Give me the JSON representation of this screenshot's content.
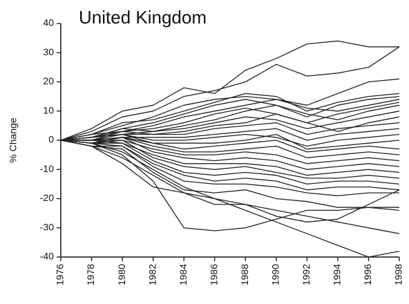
{
  "chart_data": {
    "type": "line",
    "title": "United Kingdom",
    "y_label": "% Change",
    "color": "#222222",
    "x": [
      1976,
      1978,
      1980,
      1982,
      1984,
      1986,
      1988,
      1990,
      1992,
      1994,
      1996,
      1998
    ],
    "xlim": [
      1976,
      1998
    ],
    "xticks": [
      1976,
      1978,
      1980,
      1982,
      1984,
      1986,
      1988,
      1990,
      1992,
      1994,
      1996,
      1998
    ],
    "ylim": [
      -40,
      40
    ],
    "yticks": [
      -40,
      -30,
      -20,
      -10,
      0,
      10,
      20,
      30,
      40
    ],
    "series": [
      {
        "values": [
          0,
          4,
          10,
          12,
          18,
          16,
          24,
          28,
          33,
          34,
          32,
          32
        ]
      },
      {
        "values": [
          0,
          3,
          8,
          10,
          15,
          17,
          20,
          26,
          22,
          23,
          25,
          32
        ]
      },
      {
        "values": [
          0,
          2,
          5,
          8,
          12,
          14,
          15,
          14,
          12,
          16,
          20,
          21
        ]
      },
      {
        "values": [
          0,
          2,
          6,
          7,
          10,
          13,
          16,
          15,
          10,
          13,
          15,
          16
        ]
      },
      {
        "values": [
          0,
          1,
          4,
          6,
          9,
          12,
          14,
          12,
          8,
          12,
          14,
          15
        ]
      },
      {
        "values": [
          0,
          2,
          3,
          5,
          8,
          10,
          12,
          14,
          11,
          10,
          12,
          14
        ]
      },
      {
        "values": [
          0,
          1,
          3,
          4,
          6,
          9,
          11,
          9,
          6,
          9,
          11,
          13
        ]
      },
      {
        "values": [
          0,
          1,
          4,
          3,
          5,
          7,
          10,
          12,
          9,
          7,
          10,
          12
        ]
      },
      {
        "values": [
          0,
          1,
          2,
          3,
          4,
          6,
          8,
          7,
          4,
          6,
          8,
          10
        ]
      },
      {
        "values": [
          0,
          0,
          3,
          2,
          3,
          5,
          6,
          9,
          6,
          3,
          6,
          8
        ]
      },
      {
        "values": [
          0,
          1,
          2,
          2,
          2,
          4,
          5,
          6,
          2,
          4,
          5,
          6
        ]
      },
      {
        "values": [
          0,
          0,
          1,
          1,
          1,
          2,
          3,
          4,
          0,
          2,
          3,
          4
        ]
      },
      {
        "values": [
          0,
          1,
          2,
          0,
          0,
          1,
          2,
          1,
          -2,
          0,
          1,
          2
        ]
      },
      {
        "values": [
          0,
          0,
          1,
          -1,
          -1,
          -1,
          0,
          2,
          -3,
          -2,
          -1,
          0
        ]
      },
      {
        "values": [
          0,
          0,
          2,
          -1,
          -3,
          -2,
          -1,
          0,
          -4,
          -3,
          -2,
          -3
        ]
      },
      {
        "values": [
          0,
          -1,
          1,
          -2,
          -4,
          -4,
          -3,
          -2,
          -6,
          -5,
          -4,
          -5
        ]
      },
      {
        "values": [
          0,
          0,
          0,
          -3,
          -5,
          -5,
          -4,
          -5,
          -8,
          -7,
          -6,
          -7
        ]
      },
      {
        "values": [
          0,
          -1,
          1,
          -4,
          -6,
          -7,
          -6,
          -7,
          -10,
          -9,
          -8,
          -9
        ]
      },
      {
        "values": [
          0,
          0,
          -1,
          -5,
          -8,
          -8,
          -8,
          -9,
          -12,
          -11,
          -10,
          -11
        ]
      },
      {
        "values": [
          0,
          -1,
          0,
          -6,
          -9,
          -10,
          -9,
          -11,
          -13,
          -13,
          -12,
          -13
        ]
      },
      {
        "values": [
          0,
          -1,
          -1,
          -7,
          -11,
          -12,
          -11,
          -12,
          -15,
          -14,
          -14,
          -15
        ]
      },
      {
        "values": [
          0,
          -1,
          -2,
          -8,
          -12,
          -14,
          -13,
          -14,
          -17,
          -16,
          -16,
          -17
        ]
      },
      {
        "values": [
          0,
          -2,
          -2,
          -9,
          -14,
          -15,
          -15,
          -16,
          -18,
          -19,
          -18,
          -18
        ]
      },
      {
        "values": [
          0,
          -1,
          -4,
          -10,
          -16,
          -20,
          -22,
          -26,
          -28,
          -27,
          -22,
          -17
        ]
      },
      {
        "values": [
          0,
          -2,
          -3,
          -11,
          -17,
          -18,
          -17,
          -20,
          -21,
          -23,
          -23,
          -23
        ]
      },
      {
        "values": [
          0,
          -2,
          -8,
          -16,
          -18,
          -22,
          -22,
          -24,
          -26,
          -28,
          -30,
          -32
        ]
      },
      {
        "values": [
          0,
          -1,
          -5,
          -14,
          -30,
          -31,
          -30,
          -27,
          -24,
          -24,
          -23,
          -24
        ]
      },
      {
        "values": [
          0,
          -2,
          -6,
          -12,
          -18,
          -20,
          -24,
          -28,
          -32,
          -36,
          -40,
          -38
        ]
      }
    ]
  }
}
